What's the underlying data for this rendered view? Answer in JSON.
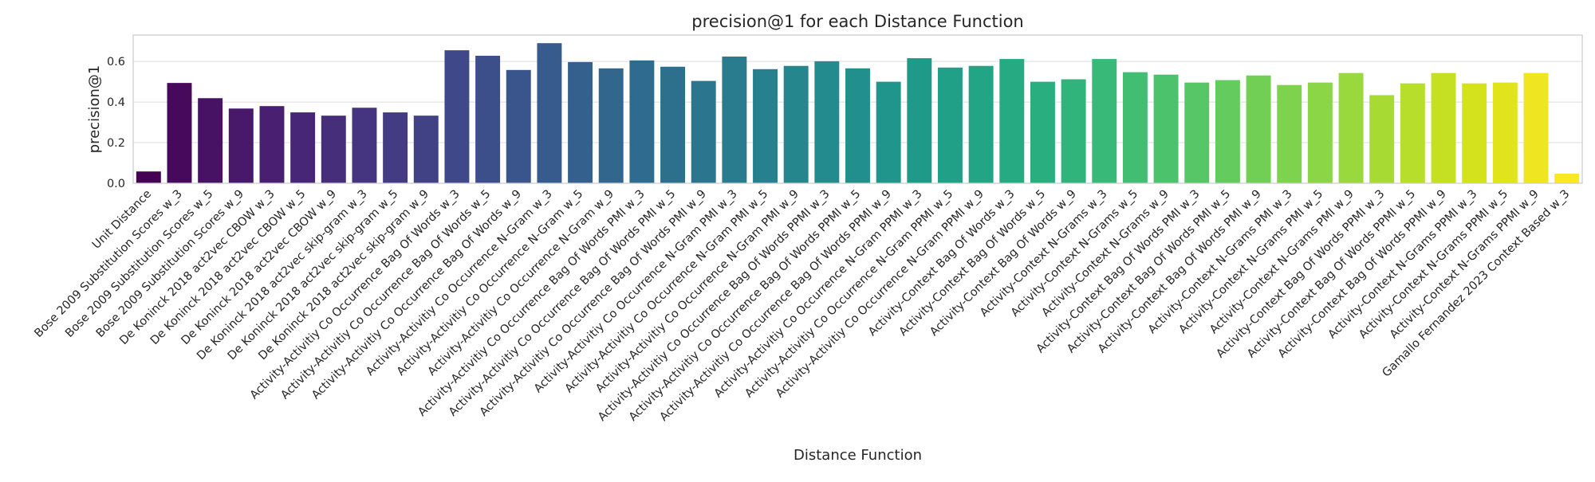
{
  "chart_data": {
    "type": "bar",
    "title": "precision@1 for each Distance Function",
    "xlabel": "Distance Function",
    "ylabel": "precision@1",
    "ylim": [
      0,
      0.73
    ],
    "yticks": [
      "0.0",
      "0.2",
      "0.4",
      "0.6"
    ],
    "grid": true,
    "palette": "viridis",
    "categories": [
      "Unit Distance",
      "Bose 2009 Substitution Scores w_3",
      "Bose 2009 Substitution Scores w_5",
      "Bose 2009 Substitution Scores w_9",
      "De Koninck 2018 act2vec CBOW w_3",
      "De Koninck 2018 act2vec CBOW w_5",
      "De Koninck 2018 act2vec CBOW w_9",
      "De Koninck 2018 act2vec skip-gram w_3",
      "De Koninck 2018 act2vec skip-gram w_5",
      "De Koninck 2018 act2vec skip-gram w_9",
      "Activity-Activitiy Co Occurrence Bag Of Words w_3",
      "Activity-Activitiy Co Occurrence Bag Of Words w_5",
      "Activity-Activitiy Co Occurrence Bag Of Words w_9",
      "Activity-Activitiy Co Occurrence N-Gram w_3",
      "Activity-Activitiy Co Occurrence N-Gram w_5",
      "Activity-Activitiy Co Occurrence N-Gram w_9",
      "Activity-Activitiy Co Occurrence Bag Of Words PMI w_3",
      "Activity-Activitiy Co Occurrence Bag Of Words PMI w_5",
      "Activity-Activitiy Co Occurrence Bag Of Words PMI w_9",
      "Activity-Activitiy Co Occurrence N-Gram PMI w_3",
      "Activity-Activitiy Co Occurrence N-Gram PMI w_5",
      "Activity-Activitiy Co Occurrence N-Gram PMI w_9",
      "Activity-Activitiy Co Occurrence Bag Of Words PPMI w_3",
      "Activity-Activitiy Co Occurrence Bag Of Words PPMI w_5",
      "Activity-Activitiy Co Occurrence Bag Of Words PPMI w_9",
      "Activity-Activitiy Co Occurrence N-Gram PPMI w_3",
      "Activity-Activitiy Co Occurrence N-Gram PPMI w_5",
      "Activity-Activitiy Co Occurrence N-Gram PPMI w_9",
      "Activity-Context Bag Of Words w_3",
      "Activity-Context Bag Of Words w_5",
      "Activity-Context Bag Of Words w_9",
      "Activity-Context N-Grams w_3",
      "Activity-Context N-Grams w_5",
      "Activity-Context N-Grams w_9",
      "Activity-Context Bag Of Words PMI w_3",
      "Activity-Context Bag Of Words PMI w_5",
      "Activity-Context Bag Of Words PMI w_9",
      "Activity-Context N-Grams PMI w_3",
      "Activity-Context N-Grams PMI w_5",
      "Activity-Context N-Grams PMI w_9",
      "Activity-Context Bag Of Words PPMI w_3",
      "Activity-Context Bag Of Words PPMI w_5",
      "Activity-Context Bag Of Words PPMI w_9",
      "Activity-Context N-Grams PPMI w_3",
      "Activity-Context N-Grams PPMI w_5",
      "Activity-Context N-Grams PPMI w_9",
      "Gamallo Fernandez 2023 Context Based w_3"
    ],
    "values": [
      0.058,
      0.494,
      0.419,
      0.368,
      0.38,
      0.349,
      0.333,
      0.372,
      0.349,
      0.333,
      0.655,
      0.628,
      0.558,
      0.69,
      0.597,
      0.566,
      0.605,
      0.574,
      0.504,
      0.624,
      0.562,
      0.578,
      0.601,
      0.566,
      0.5,
      0.616,
      0.57,
      0.578,
      0.612,
      0.5,
      0.512,
      0.612,
      0.547,
      0.535,
      0.496,
      0.508,
      0.531,
      0.484,
      0.496,
      0.543,
      0.434,
      0.492,
      0.543,
      0.492,
      0.496,
      0.543,
      0.047
    ]
  }
}
